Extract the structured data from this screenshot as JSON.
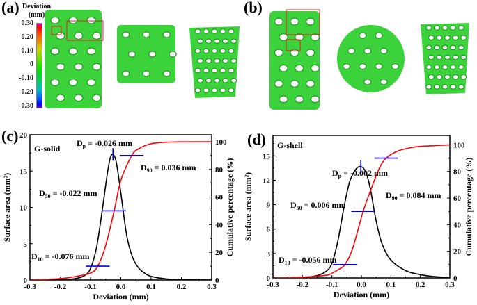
{
  "panels": {
    "a": {
      "label": "(a)"
    },
    "b": {
      "label": "(b)"
    },
    "c": {
      "label": "(c)"
    },
    "d": {
      "label": "(d)"
    }
  },
  "colorbar": {
    "title_line1": "Deviation",
    "title_line2": "(mm)",
    "ticks": [
      "0.30",
      "0.20",
      "0.10",
      "0",
      "-0.10",
      "-0.20",
      "-0.30"
    ],
    "colors": [
      "#c800c8",
      "#ff0000",
      "#ff8000",
      "#c8c800",
      "#40e000",
      "#00d040",
      "#00c0a0",
      "#0080ff",
      "#0000ff",
      "#8000c0"
    ]
  },
  "renders": {
    "base_color": "#3cd23c",
    "dark_color": "#1e9e1e",
    "highlight_box_color": "#e02020"
  },
  "chart_data": [
    {
      "type": "line",
      "panel": "(c)",
      "title": "G-solid",
      "xlabel": "Deviation (mm)",
      "ylabel": "Surface area (mm²)",
      "ylabel_right": "Cumulative percentage (%)",
      "xlim": [
        -0.3,
        0.3
      ],
      "ylim": [
        0,
        20
      ],
      "ylim_right": [
        0,
        105
      ],
      "xticks": [
        "-0.3",
        "-0.2",
        "-0.1",
        "0.0",
        "0.1",
        "0.2",
        "0.3"
      ],
      "yticks": [
        "0",
        "5",
        "10",
        "15",
        "20"
      ],
      "yticks_right": [
        "0",
        "20",
        "40",
        "60",
        "80",
        "100"
      ],
      "grid": false,
      "series": [
        {
          "name": "Surface area",
          "axis": "left",
          "color": "#000000",
          "x": [
            -0.3,
            -0.2,
            -0.15,
            -0.12,
            -0.1,
            -0.08,
            -0.06,
            -0.045,
            -0.035,
            -0.026,
            -0.015,
            0.0,
            0.02,
            0.04,
            0.06,
            0.08,
            0.1,
            0.15,
            0.2,
            0.3
          ],
          "y": [
            0,
            0.05,
            0.2,
            0.6,
            1.6,
            4.5,
            10,
            14.5,
            16.8,
            17.3,
            16.2,
            12.0,
            6.0,
            3.0,
            1.6,
            0.9,
            0.5,
            0.15,
            0.05,
            0
          ]
        },
        {
          "name": "Cumulative percentage",
          "axis": "right",
          "color": "#ff0000",
          "x": [
            -0.3,
            -0.2,
            -0.15,
            -0.1,
            -0.076,
            -0.05,
            -0.022,
            0.0,
            0.036,
            0.06,
            0.1,
            0.15,
            0.2,
            0.3
          ],
          "y": [
            0,
            1,
            2.5,
            5,
            10,
            25,
            50,
            72,
            90,
            95,
            98.5,
            99.6,
            99.9,
            100
          ]
        }
      ],
      "annotations": [
        {
          "text_main": "D",
          "text_sub": "p",
          "text_rest": " = -0.026 mm",
          "x": -0.026,
          "y": 17.3
        },
        {
          "text_main": "D",
          "text_sub": "90",
          "text_rest": " = 0.036 mm",
          "x": 0.036,
          "pct": 90
        },
        {
          "text_main": "D",
          "text_sub": "50",
          "text_rest": " = -0.022 mm",
          "x": -0.022,
          "pct": 50
        },
        {
          "text_main": "D",
          "text_sub": "10",
          "text_rest": " = -0.076 mm",
          "x": -0.076,
          "pct": 10
        }
      ],
      "marker_color": "#0000ff"
    },
    {
      "type": "line",
      "panel": "(d)",
      "title": "G-shell",
      "xlabel": "Deviation (mm)",
      "ylabel": "Surface area (mm²)",
      "ylabel_right": "Cumulative percentage (%)",
      "xlim": [
        -0.3,
        0.3
      ],
      "ylim": [
        0,
        17.5
      ],
      "ylim_right": [
        0,
        107
      ],
      "xticks": [
        "-0.3",
        "-0.2",
        "-0.1",
        "0.0",
        "0.1",
        "0.2",
        "0.3"
      ],
      "yticks": [
        "0",
        "3",
        "6",
        "9",
        "12",
        "15"
      ],
      "yticks_right": [
        "0",
        "20",
        "40",
        "60",
        "80",
        "100"
      ],
      "grid": false,
      "series": [
        {
          "name": "Surface area",
          "axis": "left",
          "color": "#000000",
          "x": [
            -0.3,
            -0.2,
            -0.15,
            -0.12,
            -0.1,
            -0.08,
            -0.06,
            -0.04,
            -0.02,
            -0.002,
            0.015,
            0.03,
            0.05,
            0.07,
            0.1,
            0.15,
            0.2,
            0.25,
            0.3
          ],
          "y": [
            0,
            0.05,
            0.3,
            0.8,
            1.8,
            4.5,
            8.5,
            11.8,
            13.3,
            13.7,
            13.0,
            11.0,
            7.0,
            4.2,
            2.2,
            0.9,
            0.4,
            0.15,
            0.05
          ]
        },
        {
          "name": "Cumulative percentage",
          "axis": "right",
          "color": "#ff0000",
          "x": [
            -0.3,
            -0.2,
            -0.12,
            -0.1,
            -0.08,
            -0.056,
            -0.03,
            0.006,
            0.03,
            0.06,
            0.084,
            0.12,
            0.16,
            0.2,
            0.3
          ],
          "y": [
            0,
            0.5,
            2,
            3.5,
            6,
            10,
            22,
            50,
            65,
            82,
            90,
            95,
            97.5,
            98.8,
            100
          ]
        }
      ],
      "annotations": [
        {
          "text_main": "D",
          "text_sub": "p",
          "text_rest": " = -0.002 mm",
          "x": -0.002,
          "y": 13.7
        },
        {
          "text_main": "D",
          "text_sub": "90",
          "text_rest": " = 0.084 mm",
          "x": 0.084,
          "pct": 90
        },
        {
          "text_main": "D",
          "text_sub": "50",
          "text_rest": " = 0.006 mm",
          "x": 0.006,
          "pct": 50
        },
        {
          "text_main": "D",
          "text_sub": "10",
          "text_rest": " = -0.056 mm",
          "x": -0.056,
          "pct": 10
        }
      ],
      "marker_color": "#0000ff"
    }
  ]
}
